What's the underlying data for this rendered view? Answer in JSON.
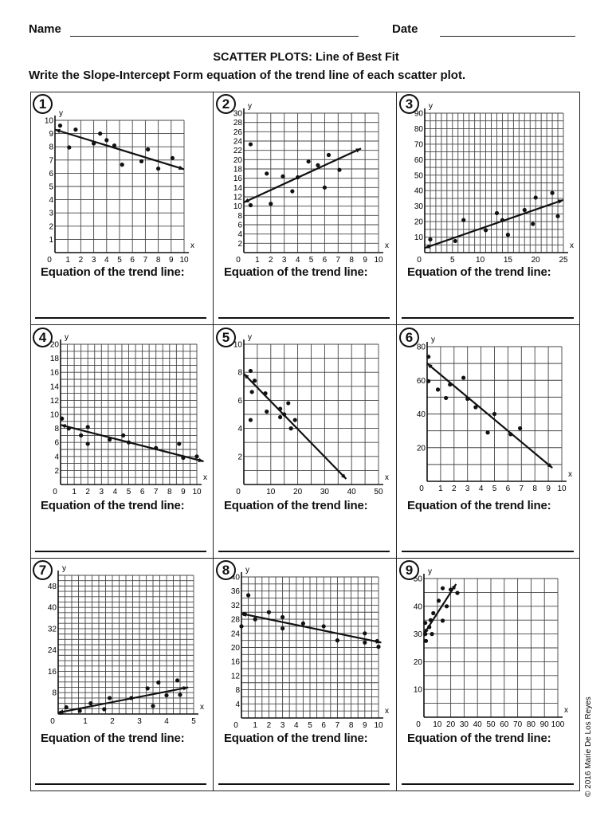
{
  "header": {
    "name_label": "Name",
    "date_label": "Date"
  },
  "title": "SCATTER PLOTS: Line of Best Fit",
  "instructions": "Write the Slope-Intercept Form equation of the trend line of each scatter plot.",
  "equation_label": "Equation of the trend line:",
  "copyright": "© 2016 Marie De Los Reyes",
  "chart_data": [
    {
      "number": "1",
      "type": "scatter",
      "xlabel": "x",
      "ylabel": "y",
      "xlim": [
        0,
        10
      ],
      "ylim": [
        0,
        10
      ],
      "xgrid": 1,
      "ygrid": 1,
      "xticks": [
        "0",
        "1",
        "2",
        "3",
        "4",
        "5",
        "6",
        "7",
        "8",
        "9",
        "10"
      ],
      "yticks": [
        "1",
        "2",
        "3",
        "4",
        "5",
        "6",
        "7",
        "8",
        "9",
        "10"
      ],
      "points": [
        [
          0.4,
          9.6
        ],
        [
          1.1,
          7.95
        ],
        [
          1.6,
          9.3
        ],
        [
          3,
          8.25
        ],
        [
          3.5,
          9
        ],
        [
          4,
          8.5
        ],
        [
          4.6,
          8.1
        ],
        [
          5.2,
          6.65
        ],
        [
          6.7,
          6.9
        ],
        [
          7.2,
          7.8
        ],
        [
          8,
          6.35
        ],
        [
          9.1,
          7.15
        ]
      ],
      "trend_line": [
        [
          0,
          9.3
        ],
        [
          10,
          6.3
        ]
      ]
    },
    {
      "number": "2",
      "type": "scatter",
      "xlabel": "x",
      "ylabel": "y",
      "xlim": [
        0,
        10
      ],
      "ylim": [
        0,
        30
      ],
      "xgrid": 1,
      "ygrid": 2,
      "xticks": [
        "0",
        "1",
        "2",
        "3",
        "4",
        "5",
        "6",
        "7",
        "8",
        "9",
        "10"
      ],
      "yticks": [
        "2",
        "4",
        "6",
        "8",
        "10",
        "12",
        "14",
        "16",
        "18",
        "20",
        "22",
        "24",
        "26",
        "28",
        "30"
      ],
      "points": [
        [
          0.5,
          23.3
        ],
        [
          0.5,
          10.2
        ],
        [
          1.7,
          17
        ],
        [
          2,
          10.5
        ],
        [
          2.9,
          16.4
        ],
        [
          3.6,
          13.2
        ],
        [
          4,
          16.2
        ],
        [
          4.8,
          19.6
        ],
        [
          5.5,
          18.8
        ],
        [
          6,
          14
        ],
        [
          6.3,
          21
        ],
        [
          7.1,
          17.8
        ]
      ],
      "trend_line": [
        [
          0,
          10.8
        ],
        [
          8.7,
          22.4
        ]
      ]
    },
    {
      "number": "3",
      "type": "scatter",
      "xlabel": "x",
      "ylabel": "y",
      "xlim": [
        0,
        25
      ],
      "ylim": [
        0,
        90
      ],
      "xgrid": 1,
      "ygrid": 5,
      "xticks": [
        "0",
        "5",
        "10",
        "15",
        "20",
        "25"
      ],
      "yticks": [
        "10",
        "20",
        "30",
        "40",
        "50",
        "60",
        "70",
        "80",
        "90"
      ],
      "points": [
        [
          1,
          8.5
        ],
        [
          5.5,
          7.5
        ],
        [
          7,
          21
        ],
        [
          11,
          14.5
        ],
        [
          13,
          25.5
        ],
        [
          14,
          21
        ],
        [
          15,
          11.5
        ],
        [
          18,
          27.5
        ],
        [
          19.5,
          18.5
        ],
        [
          20,
          35.5
        ],
        [
          23,
          38.5
        ],
        [
          24,
          23.5
        ]
      ],
      "trend_line": [
        [
          0,
          3
        ],
        [
          25,
          34
        ]
      ]
    },
    {
      "number": "4",
      "type": "scatter",
      "xlabel": "x",
      "ylabel": "y",
      "xlim": [
        0,
        10
      ],
      "ylim": [
        0,
        20
      ],
      "xgrid": 0.5,
      "ygrid": 1,
      "xticks": [
        "0",
        "1",
        "2",
        "3",
        "4",
        "5",
        "6",
        "7",
        "8",
        "9",
        "10"
      ],
      "yticks": [
        "2",
        "4",
        "6",
        "8",
        "10",
        "12",
        "14",
        "16",
        "18",
        "20"
      ],
      "points": [
        [
          0.1,
          9.4
        ],
        [
          0.6,
          8
        ],
        [
          1.5,
          7
        ],
        [
          2,
          8.2
        ],
        [
          2,
          5.8
        ],
        [
          3.6,
          6.4
        ],
        [
          4.6,
          7
        ],
        [
          5,
          6
        ],
        [
          7,
          5.2
        ],
        [
          8.7,
          5.8
        ],
        [
          9,
          3.8
        ],
        [
          10,
          4
        ]
      ],
      "trend_line": [
        [
          0,
          8.5
        ],
        [
          10.5,
          3.3
        ]
      ]
    },
    {
      "number": "5",
      "type": "scatter",
      "xlabel": "x",
      "ylabel": "y",
      "xlim": [
        0,
        50
      ],
      "ylim": [
        0,
        10
      ],
      "xgrid": 5,
      "ygrid": 1,
      "xticks": [
        "0",
        "10",
        "20",
        "30",
        "40",
        "50"
      ],
      "yticks": [
        "2",
        "4",
        "6",
        "8",
        "10"
      ],
      "points": [
        [
          2.5,
          8.1
        ],
        [
          3,
          6.6
        ],
        [
          4,
          7.4
        ],
        [
          2.5,
          4.6
        ],
        [
          8,
          6.5
        ],
        [
          8.5,
          5.2
        ],
        [
          13.5,
          5.4
        ],
        [
          13.5,
          4.8
        ],
        [
          15,
          5
        ],
        [
          16.5,
          5.8
        ],
        [
          17.5,
          4
        ],
        [
          19,
          4.6
        ]
      ],
      "trend_line": [
        [
          0,
          7.9
        ],
        [
          38,
          0.4
        ]
      ]
    },
    {
      "number": "6",
      "type": "scatter",
      "xlabel": "x",
      "ylabel": "y",
      "xlim": [
        0,
        10
      ],
      "ylim": [
        0,
        80
      ],
      "xgrid": 1,
      "ygrid": 10,
      "xticks": [
        "0",
        "1",
        "2",
        "3",
        "4",
        "5",
        "6",
        "7",
        "8",
        "9",
        "10"
      ],
      "yticks": [
        "20",
        "40",
        "60",
        "80"
      ],
      "points": [
        [
          0.1,
          74
        ],
        [
          0.1,
          59.5
        ],
        [
          0.8,
          54.5
        ],
        [
          1.4,
          49.5
        ],
        [
          1.7,
          57.5
        ],
        [
          2.7,
          61.5
        ],
        [
          3,
          49
        ],
        [
          3.6,
          44
        ],
        [
          4.5,
          29
        ],
        [
          5,
          40
        ],
        [
          6.2,
          28
        ],
        [
          6.9,
          31.5
        ]
      ],
      "trend_line": [
        [
          0,
          70
        ],
        [
          9.3,
          8
        ]
      ]
    },
    {
      "number": "7",
      "type": "scatter",
      "xlabel": "x",
      "ylabel": "y",
      "xlim": [
        0,
        5
      ],
      "ylim": [
        0,
        52
      ],
      "xgrid": 0.25,
      "ygrid": 2,
      "xticks": [
        "0",
        "1",
        "2",
        "3",
        "4",
        "5"
      ],
      "yticks": [
        "8",
        "16",
        "24",
        "32",
        "40",
        "48"
      ],
      "points": [
        [
          0.1,
          0.5
        ],
        [
          0.3,
          2.5
        ],
        [
          0.8,
          1.2
        ],
        [
          1.2,
          4
        ],
        [
          1.7,
          1.8
        ],
        [
          1.9,
          6
        ],
        [
          2.7,
          6
        ],
        [
          3.3,
          9.6
        ],
        [
          3.5,
          3
        ],
        [
          3.7,
          11.8
        ],
        [
          4,
          7
        ],
        [
          4.4,
          12.6
        ],
        [
          4.5,
          7.2
        ]
      ],
      "trend_line": [
        [
          0,
          0.5
        ],
        [
          4.8,
          10
        ]
      ]
    },
    {
      "number": "8",
      "type": "scatter",
      "xlabel": "x",
      "ylabel": "y",
      "xlim": [
        0,
        10
      ],
      "ylim": [
        0,
        40
      ],
      "xgrid": 0.5,
      "ygrid": 2,
      "xticks": [
        "0",
        "1",
        "2",
        "3",
        "4",
        "5",
        "6",
        "7",
        "8",
        "9",
        "10"
      ],
      "yticks": [
        "4",
        "8",
        "12",
        "16",
        "20",
        "24",
        "28",
        "32",
        "36",
        "40"
      ],
      "points": [
        [
          0,
          26
        ],
        [
          0.2,
          29.5
        ],
        [
          0.5,
          34.8
        ],
        [
          1,
          28
        ],
        [
          2,
          30
        ],
        [
          3,
          28.6
        ],
        [
          3,
          25.4
        ],
        [
          4.5,
          26.8
        ],
        [
          6,
          26
        ],
        [
          7,
          22
        ],
        [
          9,
          24
        ],
        [
          9,
          21.4
        ],
        [
          10,
          20.2
        ],
        [
          9.9,
          21.8
        ]
      ],
      "trend_line": [
        [
          0,
          29.6
        ],
        [
          10.2,
          21.4
        ]
      ]
    },
    {
      "number": "9",
      "type": "scatter",
      "xlabel": "x",
      "ylabel": "y",
      "xlim": [
        0,
        100
      ],
      "ylim": [
        0,
        50
      ],
      "xgrid": 10,
      "ygrid": 5,
      "xticks": [
        "0",
        "10",
        "20",
        "30",
        "40",
        "50",
        "60",
        "70",
        "80",
        "90",
        "100"
      ],
      "yticks": [
        "10",
        "20",
        "30",
        "40",
        "50"
      ],
      "points": [
        [
          1,
          34
        ],
        [
          1,
          30
        ],
        [
          1.5,
          27.5
        ],
        [
          4,
          32.5
        ],
        [
          5,
          35
        ],
        [
          6,
          30
        ],
        [
          7,
          37.5
        ],
        [
          11,
          42
        ],
        [
          14,
          46.5
        ],
        [
          14,
          34.8
        ],
        [
          17,
          40
        ],
        [
          20,
          46
        ],
        [
          25,
          44.8
        ]
      ],
      "trend_line": [
        [
          0,
          30
        ],
        [
          24,
          48
        ]
      ]
    }
  ]
}
